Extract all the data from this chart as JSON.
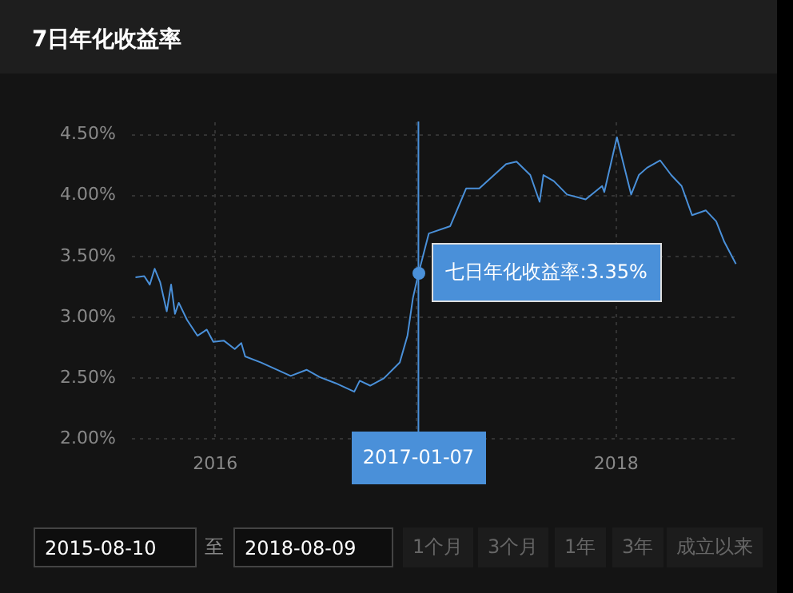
{
  "chart_data": {
    "type": "line",
    "title": "7日年化收益率",
    "x": [
      "2015-08-10",
      "2015-08-26",
      "2015-09-05",
      "2015-09-14",
      "2015-09-24",
      "2015-10-06",
      "2015-10-14",
      "2015-10-21",
      "2015-10-28",
      "2015-11-12",
      "2015-12-01",
      "2015-12-18",
      "2015-12-30",
      "2016-01-18",
      "2016-02-07",
      "2016-02-19",
      "2016-02-26",
      "2016-03-26",
      "2016-04-24",
      "2016-05-19",
      "2016-06-17",
      "2016-07-11",
      "2016-08-09",
      "2016-09-12",
      "2016-09-22",
      "2016-10-11",
      "2016-11-05",
      "2016-12-04",
      "2016-12-18",
      "2016-12-28",
      "2017-01-07",
      "2017-01-26",
      "2017-03-06",
      "2017-04-04",
      "2017-04-28",
      "2017-06-16",
      "2017-07-05",
      "2017-07-30",
      "2017-08-16",
      "2017-08-23",
      "2017-09-11",
      "2017-10-05",
      "2017-11-08",
      "2017-12-08",
      "2017-12-12",
      "2018-01-04",
      "2018-01-15",
      "2018-01-30",
      "2018-02-13",
      "2018-02-28",
      "2018-03-24",
      "2018-04-13",
      "2018-05-02",
      "2018-05-21",
      "2018-06-15",
      "2018-07-04",
      "2018-07-19",
      "2018-08-09"
    ],
    "series": [
      {
        "color": "#4a90d9",
        "values": [
          3.32,
          3.33,
          3.26,
          3.39,
          3.28,
          3.04,
          3.26,
          3.02,
          3.11,
          2.97,
          2.84,
          2.89,
          2.79,
          2.8,
          2.73,
          2.78,
          2.67,
          2.62,
          2.56,
          2.51,
          2.56,
          2.5,
          2.45,
          2.38,
          2.47,
          2.43,
          2.49,
          2.62,
          2.84,
          3.15,
          3.35,
          3.68,
          3.74,
          4.05,
          4.05,
          4.25,
          4.27,
          4.16,
          3.94,
          4.16,
          4.11,
          4.0,
          3.96,
          4.07,
          4.02,
          4.47,
          4.27,
          4.0,
          4.16,
          4.22,
          4.28,
          4.16,
          4.07,
          3.83,
          3.87,
          3.78,
          3.61,
          3.43
        ]
      }
    ],
    "xlim": [
      "2015-08-02",
      "2018-08-14"
    ],
    "xticks": [
      {
        "value": "2016-01-01",
        "label": "2016"
      },
      {
        "value": "2017-01-01",
        "label": null
      },
      {
        "value": "2018-01-01",
        "label": "2018"
      }
    ],
    "ylim": [
      2.0,
      4.6
    ],
    "yticks": [
      {
        "value": 2.0,
        "label": "2.00%"
      },
      {
        "value": 2.5,
        "label": "2.50%"
      },
      {
        "value": 3.0,
        "label": "3.00%"
      },
      {
        "value": 3.5,
        "label": "3.50%"
      },
      {
        "value": 4.0,
        "label": "4.00%"
      },
      {
        "value": 4.5,
        "label": "4.50%"
      }
    ],
    "grid": true,
    "marker": "none",
    "line_style": "solid",
    "ref_lines": [
      {
        "axis": "x",
        "value": "2017-01-07",
        "label": "2017-01-07",
        "color": "#4a90d9"
      }
    ],
    "annotations": [
      {
        "text": "七日年化收益率:3.35%",
        "x": "2017-01-07",
        "y": 3.35
      },
      "2015-08-10",
      "至",
      "2018-08-09",
      "1个月",
      "3个月",
      "1年",
      "3年",
      "成立以来"
    ]
  }
}
